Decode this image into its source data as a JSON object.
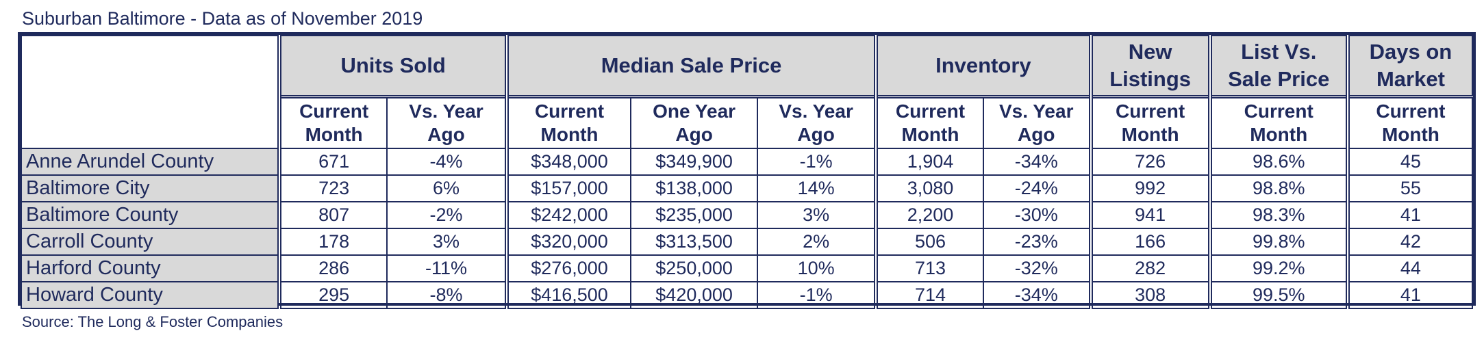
{
  "title": "Suburban Baltimore - Data as of November 2019",
  "source": "Source: The Long & Foster Companies",
  "colors": {
    "text": "#1f2a5c",
    "header_bg": "#d9d9d9",
    "border": "#1f2a5c"
  },
  "chart_data": {
    "type": "table",
    "title": "Suburban Baltimore - Data as of November 2019",
    "column_groups": [
      {
        "label_line1": "Units Sold",
        "label_line2": "",
        "columns": [
          "Current Month",
          "Vs. Year Ago"
        ]
      },
      {
        "label_line1": "Median Sale Price",
        "label_line2": "",
        "columns": [
          "Current Month",
          "One Year Ago",
          "Vs. Year Ago"
        ]
      },
      {
        "label_line1": "Inventory",
        "label_line2": "",
        "columns": [
          "Current Month",
          "Vs. Year Ago"
        ]
      },
      {
        "label_line1": "New",
        "label_line2": "Listings",
        "columns": [
          "Current Month"
        ]
      },
      {
        "label_line1": "List Vs.",
        "label_line2": "Sale Price",
        "columns": [
          "Current Month"
        ]
      },
      {
        "label_line1": "Days on",
        "label_line2": "Market",
        "columns": [
          "Current Month"
        ]
      }
    ],
    "subheaders": [
      [
        "Current",
        "Month"
      ],
      [
        "Vs. Year",
        "Ago"
      ],
      [
        "Current",
        "Month"
      ],
      [
        "One Year",
        "Ago"
      ],
      [
        "Vs. Year",
        "Ago"
      ],
      [
        "Current",
        "Month"
      ],
      [
        "Vs. Year",
        "Ago"
      ],
      [
        "Current",
        "Month"
      ],
      [
        "Current",
        "Month"
      ],
      [
        "Current",
        "Month"
      ]
    ],
    "rows": [
      {
        "label": "Anne Arundel County",
        "values": [
          "671",
          "-4%",
          "$348,000",
          "$349,900",
          "-1%",
          "1,904",
          "-34%",
          "726",
          "98.6%",
          "45"
        ]
      },
      {
        "label": "Baltimore City",
        "values": [
          "723",
          "6%",
          "$157,000",
          "$138,000",
          "14%",
          "3,080",
          "-24%",
          "992",
          "98.8%",
          "55"
        ]
      },
      {
        "label": "Baltimore County",
        "values": [
          "807",
          "-2%",
          "$242,000",
          "$235,000",
          "3%",
          "2,200",
          "-30%",
          "941",
          "98.3%",
          "41"
        ]
      },
      {
        "label": "Carroll County",
        "values": [
          "178",
          "3%",
          "$320,000",
          "$313,500",
          "2%",
          "506",
          "-23%",
          "166",
          "99.8%",
          "42"
        ]
      },
      {
        "label": "Harford County",
        "values": [
          "286",
          "-11%",
          "$276,000",
          "$250,000",
          "10%",
          "713",
          "-32%",
          "282",
          "99.2%",
          "44"
        ]
      },
      {
        "label": "Howard County",
        "values": [
          "295",
          "-8%",
          "$416,500",
          "$420,000",
          "-1%",
          "714",
          "-34%",
          "308",
          "99.5%",
          "41"
        ]
      }
    ]
  }
}
